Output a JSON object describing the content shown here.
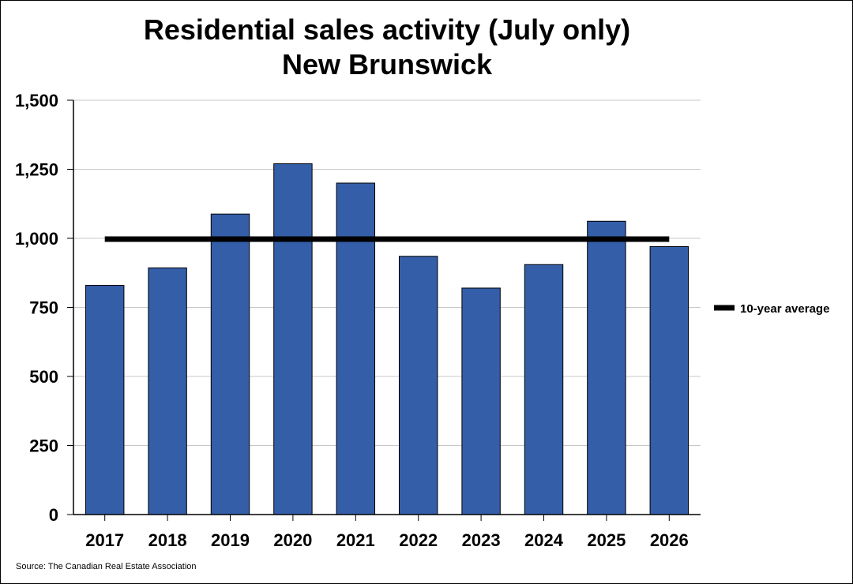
{
  "chart_data": {
    "type": "bar",
    "title": "Residential sales activity (July only)",
    "subtitle": "New Brunswick",
    "categories": [
      "2017",
      "2018",
      "2019",
      "2020",
      "2021",
      "2022",
      "2023",
      "2024",
      "2025",
      "2026"
    ],
    "series": [
      {
        "values": [
          830,
          893,
          1088,
          1270,
          1200,
          935,
          820,
          905,
          1062,
          970
        ],
        "color": "#345ea8"
      }
    ],
    "reference_line": {
      "name": "10-year average",
      "value": 997,
      "color": "#000000"
    },
    "ylim": [
      0,
      1500
    ],
    "yticks": [
      "0",
      "250",
      "500",
      "750",
      "1,000",
      "1,250",
      "1,500"
    ],
    "ytick_values": [
      0,
      250,
      500,
      750,
      1000,
      1250,
      1500
    ],
    "grid": true,
    "legend_position": "right",
    "xlabel": "",
    "ylabel": ""
  },
  "footer": {
    "source": "Source: The Canadian Real Estate Association"
  }
}
